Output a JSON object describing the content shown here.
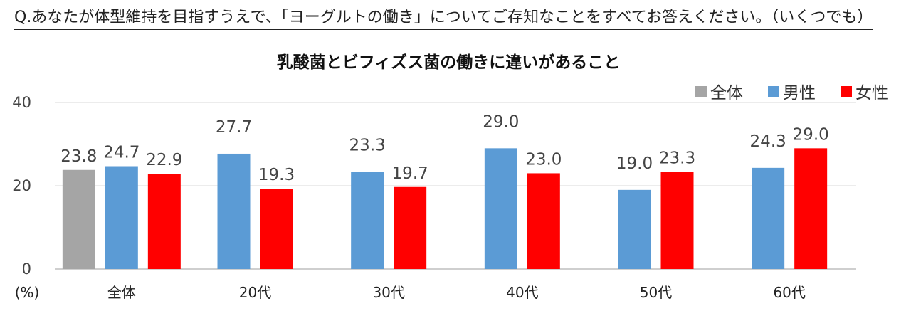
{
  "question": "Q.あなたが体型維持を目指すうえで、「ヨーグルトの働き」についてご存知なことをすべてお答えください。（いくつでも）",
  "chart_data": {
    "type": "bar",
    "title": "乳酸菌とビフィズス菌の働きに違いがあること",
    "unit_label": "(%)",
    "categories": [
      "全体",
      "20代",
      "30代",
      "40代",
      "50代",
      "60代"
    ],
    "series": [
      {
        "name": "全体",
        "color": "#A5A5A5",
        "values": [
          23.8,
          null,
          null,
          null,
          null,
          null
        ]
      },
      {
        "name": "男性",
        "color": "#5B9BD5",
        "values": [
          24.7,
          27.7,
          23.3,
          29.0,
          19.0,
          24.3
        ]
      },
      {
        "name": "女性",
        "color": "#FF0000",
        "values": [
          22.9,
          19.3,
          19.7,
          23.0,
          23.3,
          29.0
        ]
      }
    ],
    "y_ticks": [
      0,
      20,
      40
    ],
    "ylim": [
      0,
      40
    ],
    "grid": true,
    "legend_position": "top-right"
  }
}
